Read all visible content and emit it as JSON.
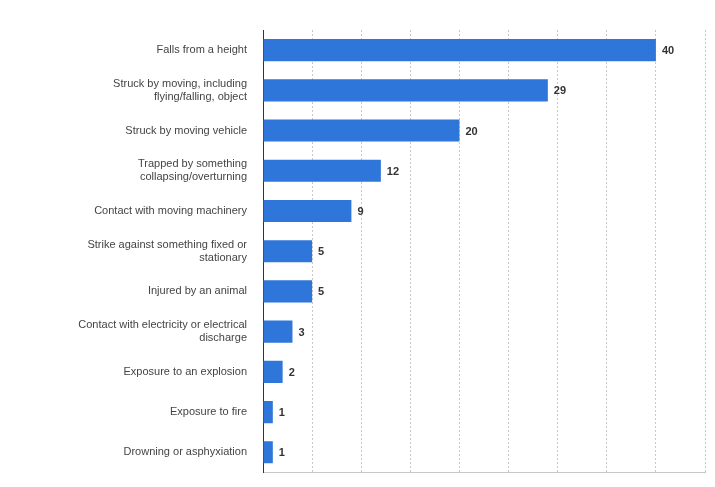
{
  "chart_data": {
    "type": "bar",
    "orientation": "horizontal",
    "categories": [
      "Falls from a height",
      "Struck by moving, including flying/falling, object",
      "Struck by moving vehicle",
      "Trapped by something collapsing/overturning",
      "Contact with moving machinery",
      "Strike against something fixed or stationary",
      "Injured by an animal",
      "Contact with electricity or electrical discharge",
      "Exposure to an explosion",
      "Exposure to fire",
      "Drowning or asphyxiation"
    ],
    "values": [
      40,
      29,
      20,
      12,
      9,
      5,
      5,
      3,
      2,
      1,
      1
    ],
    "color": "#2f76db",
    "xlim": [
      0,
      45
    ],
    "xticks": [
      0,
      5,
      10,
      15,
      20,
      25,
      30,
      35,
      40,
      45
    ],
    "grid": true,
    "data_labels": true,
    "tick_labels": "y"
  }
}
